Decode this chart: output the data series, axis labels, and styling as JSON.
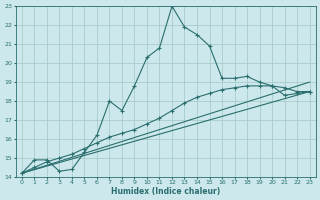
{
  "xlabel": "Humidex (Indice chaleur)",
  "bg_color": "#cce8ec",
  "grid_color": "#aacccc",
  "line_color": "#2a6e6e",
  "xlim": [
    -0.5,
    23.5
  ],
  "ylim": [
    14,
    23
  ],
  "xticks": [
    0,
    1,
    2,
    3,
    4,
    5,
    6,
    7,
    8,
    9,
    10,
    11,
    12,
    13,
    14,
    15,
    16,
    17,
    18,
    19,
    20,
    21,
    22,
    23
  ],
  "yticks": [
    14,
    15,
    16,
    17,
    18,
    19,
    20,
    21,
    22,
    23
  ],
  "line1_x": [
    0,
    1,
    2,
    3,
    4,
    5,
    6,
    7,
    8,
    9,
    10,
    11,
    12,
    13,
    14,
    15,
    16,
    17,
    18,
    19,
    20,
    21,
    22,
    23
  ],
  "line1_y": [
    14.2,
    14.9,
    14.9,
    14.3,
    14.4,
    15.3,
    16.2,
    18.0,
    17.5,
    18.8,
    20.3,
    20.8,
    23.0,
    21.9,
    21.5,
    20.9,
    19.2,
    19.2,
    19.3,
    19.0,
    18.8,
    18.3,
    18.4,
    18.5
  ],
  "line2_x": [
    0,
    1,
    2,
    3,
    4,
    5,
    6,
    7,
    8,
    9,
    10,
    11,
    12,
    13,
    14,
    15,
    16,
    17,
    18,
    19,
    20,
    21,
    22,
    23
  ],
  "line2_y": [
    14.2,
    14.5,
    14.8,
    15.0,
    15.2,
    15.5,
    15.8,
    16.1,
    16.3,
    16.5,
    16.8,
    17.1,
    17.5,
    17.9,
    18.2,
    18.4,
    18.6,
    18.7,
    18.8,
    18.8,
    18.8,
    18.7,
    18.5,
    18.5
  ],
  "line3_x": [
    0,
    23
  ],
  "line3_y": [
    14.2,
    18.5
  ],
  "line4_x": [
    0,
    23
  ],
  "line4_y": [
    14.2,
    19.0
  ]
}
